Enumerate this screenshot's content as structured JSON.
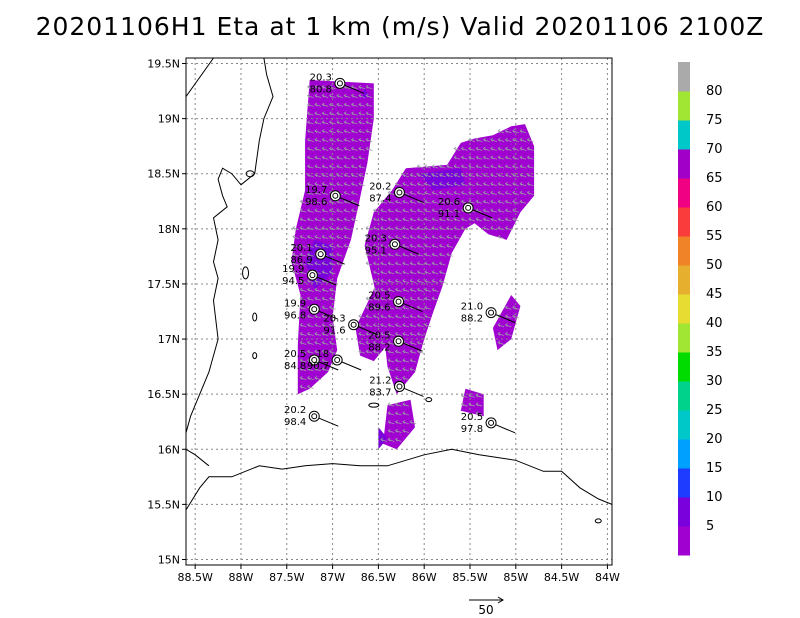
{
  "chart_data": {
    "type": "map",
    "title": "20201106H1 Eta at 1 km (m/s) Valid 20201106 2100Z",
    "xlabel": "",
    "ylabel": "",
    "xlim": [
      -88.6,
      -83.95
    ],
    "ylim": [
      14.95,
      19.55
    ],
    "x_ticks": [
      {
        "value": -88.5,
        "label": "88.5W"
      },
      {
        "value": -88.0,
        "label": "88W"
      },
      {
        "value": -87.5,
        "label": "87.5W"
      },
      {
        "value": -87.0,
        "label": "87W"
      },
      {
        "value": -86.5,
        "label": "86.5W"
      },
      {
        "value": -86.0,
        "label": "86W"
      },
      {
        "value": -85.5,
        "label": "85.5W"
      },
      {
        "value": -85.0,
        "label": "85W"
      },
      {
        "value": -84.5,
        "label": "84.5W"
      },
      {
        "value": -84.0,
        "label": "84W"
      }
    ],
    "y_ticks": [
      {
        "value": 19.5,
        "label": "19.5N"
      },
      {
        "value": 19.0,
        "label": "19N"
      },
      {
        "value": 18.5,
        "label": "18.5N"
      },
      {
        "value": 18.0,
        "label": "18N"
      },
      {
        "value": 17.5,
        "label": "17.5N"
      },
      {
        "value": 17.0,
        "label": "17N"
      },
      {
        "value": 16.5,
        "label": "16.5N"
      },
      {
        "value": 16.0,
        "label": "16N"
      },
      {
        "value": 15.5,
        "label": "15.5N"
      },
      {
        "value": 15.0,
        "label": "15N"
      }
    ],
    "grid": true,
    "colorbar": {
      "placement": "right",
      "bins": [
        {
          "color": "#a000d0",
          "label": "5"
        },
        {
          "color": "#7a00dc",
          "label": "10"
        },
        {
          "color": "#1e3cff",
          "label": "15"
        },
        {
          "color": "#00a0ff",
          "label": "20"
        },
        {
          "color": "#00c8c8",
          "label": "25"
        },
        {
          "color": "#00d28c",
          "label": "30"
        },
        {
          "color": "#00dc00",
          "label": "35"
        },
        {
          "color": "#a0e632",
          "label": "40"
        },
        {
          "color": "#e6dc32",
          "label": "45"
        },
        {
          "color": "#e6af2d",
          "label": "50"
        },
        {
          "color": "#f08228",
          "label": "55"
        },
        {
          "color": "#fa3c3c",
          "label": "60"
        },
        {
          "color": "#f00082",
          "label": "65"
        },
        {
          "color": "#a000c8",
          "label": "70"
        },
        {
          "color": "#00c8c8",
          "label": "75"
        },
        {
          "color": "#a0e632",
          "label": "80"
        },
        {
          "color": "#aaaaaa",
          "label": ""
        }
      ]
    },
    "reference_vector": {
      "label": "50"
    },
    "stations": [
      {
        "lon": -86.92,
        "lat": 19.32,
        "t": "20.3",
        "v": "80.8"
      },
      {
        "lon": -86.97,
        "lat": 18.3,
        "t": "19.7",
        "v": "98.6"
      },
      {
        "lon": -86.27,
        "lat": 18.33,
        "t": "20.2",
        "v": "87.4"
      },
      {
        "lon": -85.52,
        "lat": 18.19,
        "t": "20.6",
        "v": "91.1"
      },
      {
        "lon": -86.32,
        "lat": 17.86,
        "t": "20.3",
        "v": "95.1"
      },
      {
        "lon": -87.13,
        "lat": 17.77,
        "t": "20.1",
        "v": "86.9"
      },
      {
        "lon": -87.22,
        "lat": 17.58,
        "t": "19.9",
        "v": "94.5"
      },
      {
        "lon": -87.2,
        "lat": 17.27,
        "t": "19.9",
        "v": "96.8"
      },
      {
        "lon": -86.28,
        "lat": 17.34,
        "t": "20.5",
        "v": "89.6"
      },
      {
        "lon": -86.77,
        "lat": 17.13,
        "t": "20.3",
        "v": "91.6"
      },
      {
        "lon": -86.28,
        "lat": 16.98,
        "t": "20.5",
        "v": "88.2"
      },
      {
        "lon": -85.27,
        "lat": 17.24,
        "t": "21.0",
        "v": "88.2"
      },
      {
        "lon": -87.2,
        "lat": 16.81,
        "t": "20.5",
        "v": "84.8"
      },
      {
        "lon": -86.95,
        "lat": 16.81,
        "t": "18",
        "v": "90.7"
      },
      {
        "lon": -86.27,
        "lat": 16.57,
        "t": "21.2",
        "v": "83.7"
      },
      {
        "lon": -87.2,
        "lat": 16.3,
        "t": "20.2",
        "v": "98.4"
      },
      {
        "lon": -85.27,
        "lat": 16.24,
        "t": "20.5",
        "v": "97.8"
      }
    ],
    "echo_regions": [
      {
        "level": "5",
        "polygon": [
          [
            -87.25,
            19.35
          ],
          [
            -86.55,
            19.32
          ],
          [
            -86.55,
            19.0
          ],
          [
            -86.62,
            18.6
          ],
          [
            -86.72,
            18.2
          ],
          [
            -86.8,
            17.9
          ],
          [
            -86.95,
            17.55
          ],
          [
            -87.0,
            17.2
          ],
          [
            -86.95,
            16.9
          ],
          [
            -87.05,
            16.7
          ],
          [
            -87.25,
            16.55
          ],
          [
            -87.38,
            16.5
          ],
          [
            -87.38,
            16.95
          ],
          [
            -87.35,
            17.4
          ],
          [
            -87.45,
            17.7
          ],
          [
            -87.4,
            18.0
          ],
          [
            -87.3,
            18.35
          ],
          [
            -87.3,
            18.8
          ]
        ]
      },
      {
        "level": "5",
        "polygon": [
          [
            -86.55,
            17.45
          ],
          [
            -86.4,
            17.2
          ],
          [
            -86.4,
            16.95
          ],
          [
            -86.55,
            16.8
          ],
          [
            -86.7,
            16.85
          ],
          [
            -86.75,
            17.1
          ]
        ]
      },
      {
        "level": "5",
        "polygon": [
          [
            -86.2,
            18.55
          ],
          [
            -85.75,
            18.58
          ],
          [
            -85.6,
            18.78
          ],
          [
            -85.45,
            18.82
          ],
          [
            -85.25,
            18.85
          ],
          [
            -85.05,
            18.93
          ],
          [
            -84.9,
            18.95
          ],
          [
            -84.8,
            18.75
          ],
          [
            -84.8,
            18.3
          ],
          [
            -84.95,
            18.15
          ],
          [
            -85.1,
            17.9
          ],
          [
            -85.3,
            17.95
          ],
          [
            -85.45,
            18.05
          ],
          [
            -85.55,
            18.0
          ],
          [
            -85.7,
            17.78
          ],
          [
            -85.8,
            17.48
          ],
          [
            -85.9,
            17.25
          ],
          [
            -86.0,
            17.0
          ],
          [
            -86.1,
            16.7
          ],
          [
            -86.3,
            16.5
          ],
          [
            -86.4,
            16.75
          ],
          [
            -86.45,
            17.1
          ],
          [
            -86.55,
            17.5
          ],
          [
            -86.65,
            17.85
          ],
          [
            -86.55,
            18.15
          ],
          [
            -86.35,
            18.35
          ]
        ]
      },
      {
        "level": "5",
        "polygon": [
          [
            -86.4,
            16.4
          ],
          [
            -86.15,
            16.45
          ],
          [
            -86.1,
            16.2
          ],
          [
            -86.3,
            16.0
          ],
          [
            -86.45,
            16.05
          ]
        ]
      },
      {
        "level": "5",
        "polygon": [
          [
            -85.05,
            17.4
          ],
          [
            -84.95,
            17.3
          ],
          [
            -85.05,
            17.0
          ],
          [
            -85.2,
            16.9
          ],
          [
            -85.25,
            17.1
          ]
        ]
      },
      {
        "level": "5",
        "polygon": [
          [
            -85.55,
            16.55
          ],
          [
            -85.35,
            16.5
          ],
          [
            -85.35,
            16.3
          ],
          [
            -85.6,
            16.35
          ]
        ]
      },
      {
        "level": "10",
        "polygon": [
          [
            -87.2,
            17.9
          ],
          [
            -87.0,
            17.85
          ],
          [
            -87.0,
            17.6
          ],
          [
            -87.2,
            17.45
          ],
          [
            -87.3,
            17.7
          ]
        ]
      },
      {
        "level": "10",
        "polygon": [
          [
            -86.05,
            18.5
          ],
          [
            -85.6,
            18.55
          ],
          [
            -85.55,
            18.4
          ],
          [
            -85.9,
            18.35
          ]
        ]
      },
      {
        "level": "10",
        "polygon": [
          [
            -86.65,
            19.28
          ],
          [
            -86.6,
            19.2
          ],
          [
            -86.68,
            19.18
          ]
        ]
      },
      {
        "level": "10",
        "polygon": [
          [
            -86.5,
            16.2
          ],
          [
            -86.4,
            16.1
          ],
          [
            -86.5,
            16.0
          ]
        ]
      }
    ]
  }
}
